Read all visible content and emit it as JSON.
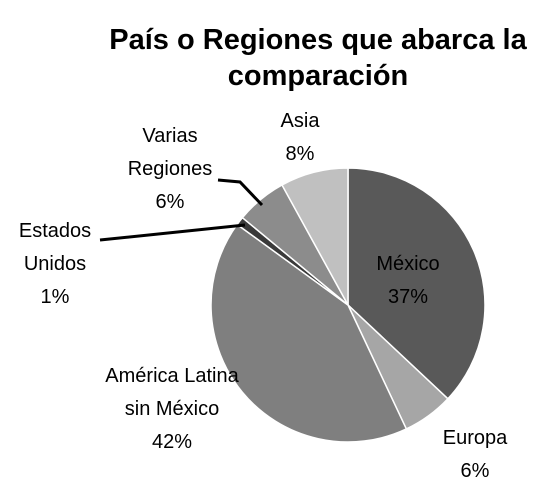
{
  "chart_data": {
    "type": "pie",
    "title": "País o Regiones que abarca la comparación",
    "categories": [
      "México",
      "Europa",
      "América Latina sin México",
      "Estados Unidos",
      "Varias Regiones",
      "Asia"
    ],
    "values": [
      37,
      6,
      42,
      1,
      6,
      8
    ],
    "value_labels": [
      "37%",
      "6%",
      "42%",
      "1%",
      "6%",
      "8%"
    ],
    "colors": [
      "#595959",
      "#a6a6a6",
      "#7f7f7f",
      "#3a3a3a",
      "#8c8c8c",
      "#c0c0c0"
    ]
  }
}
